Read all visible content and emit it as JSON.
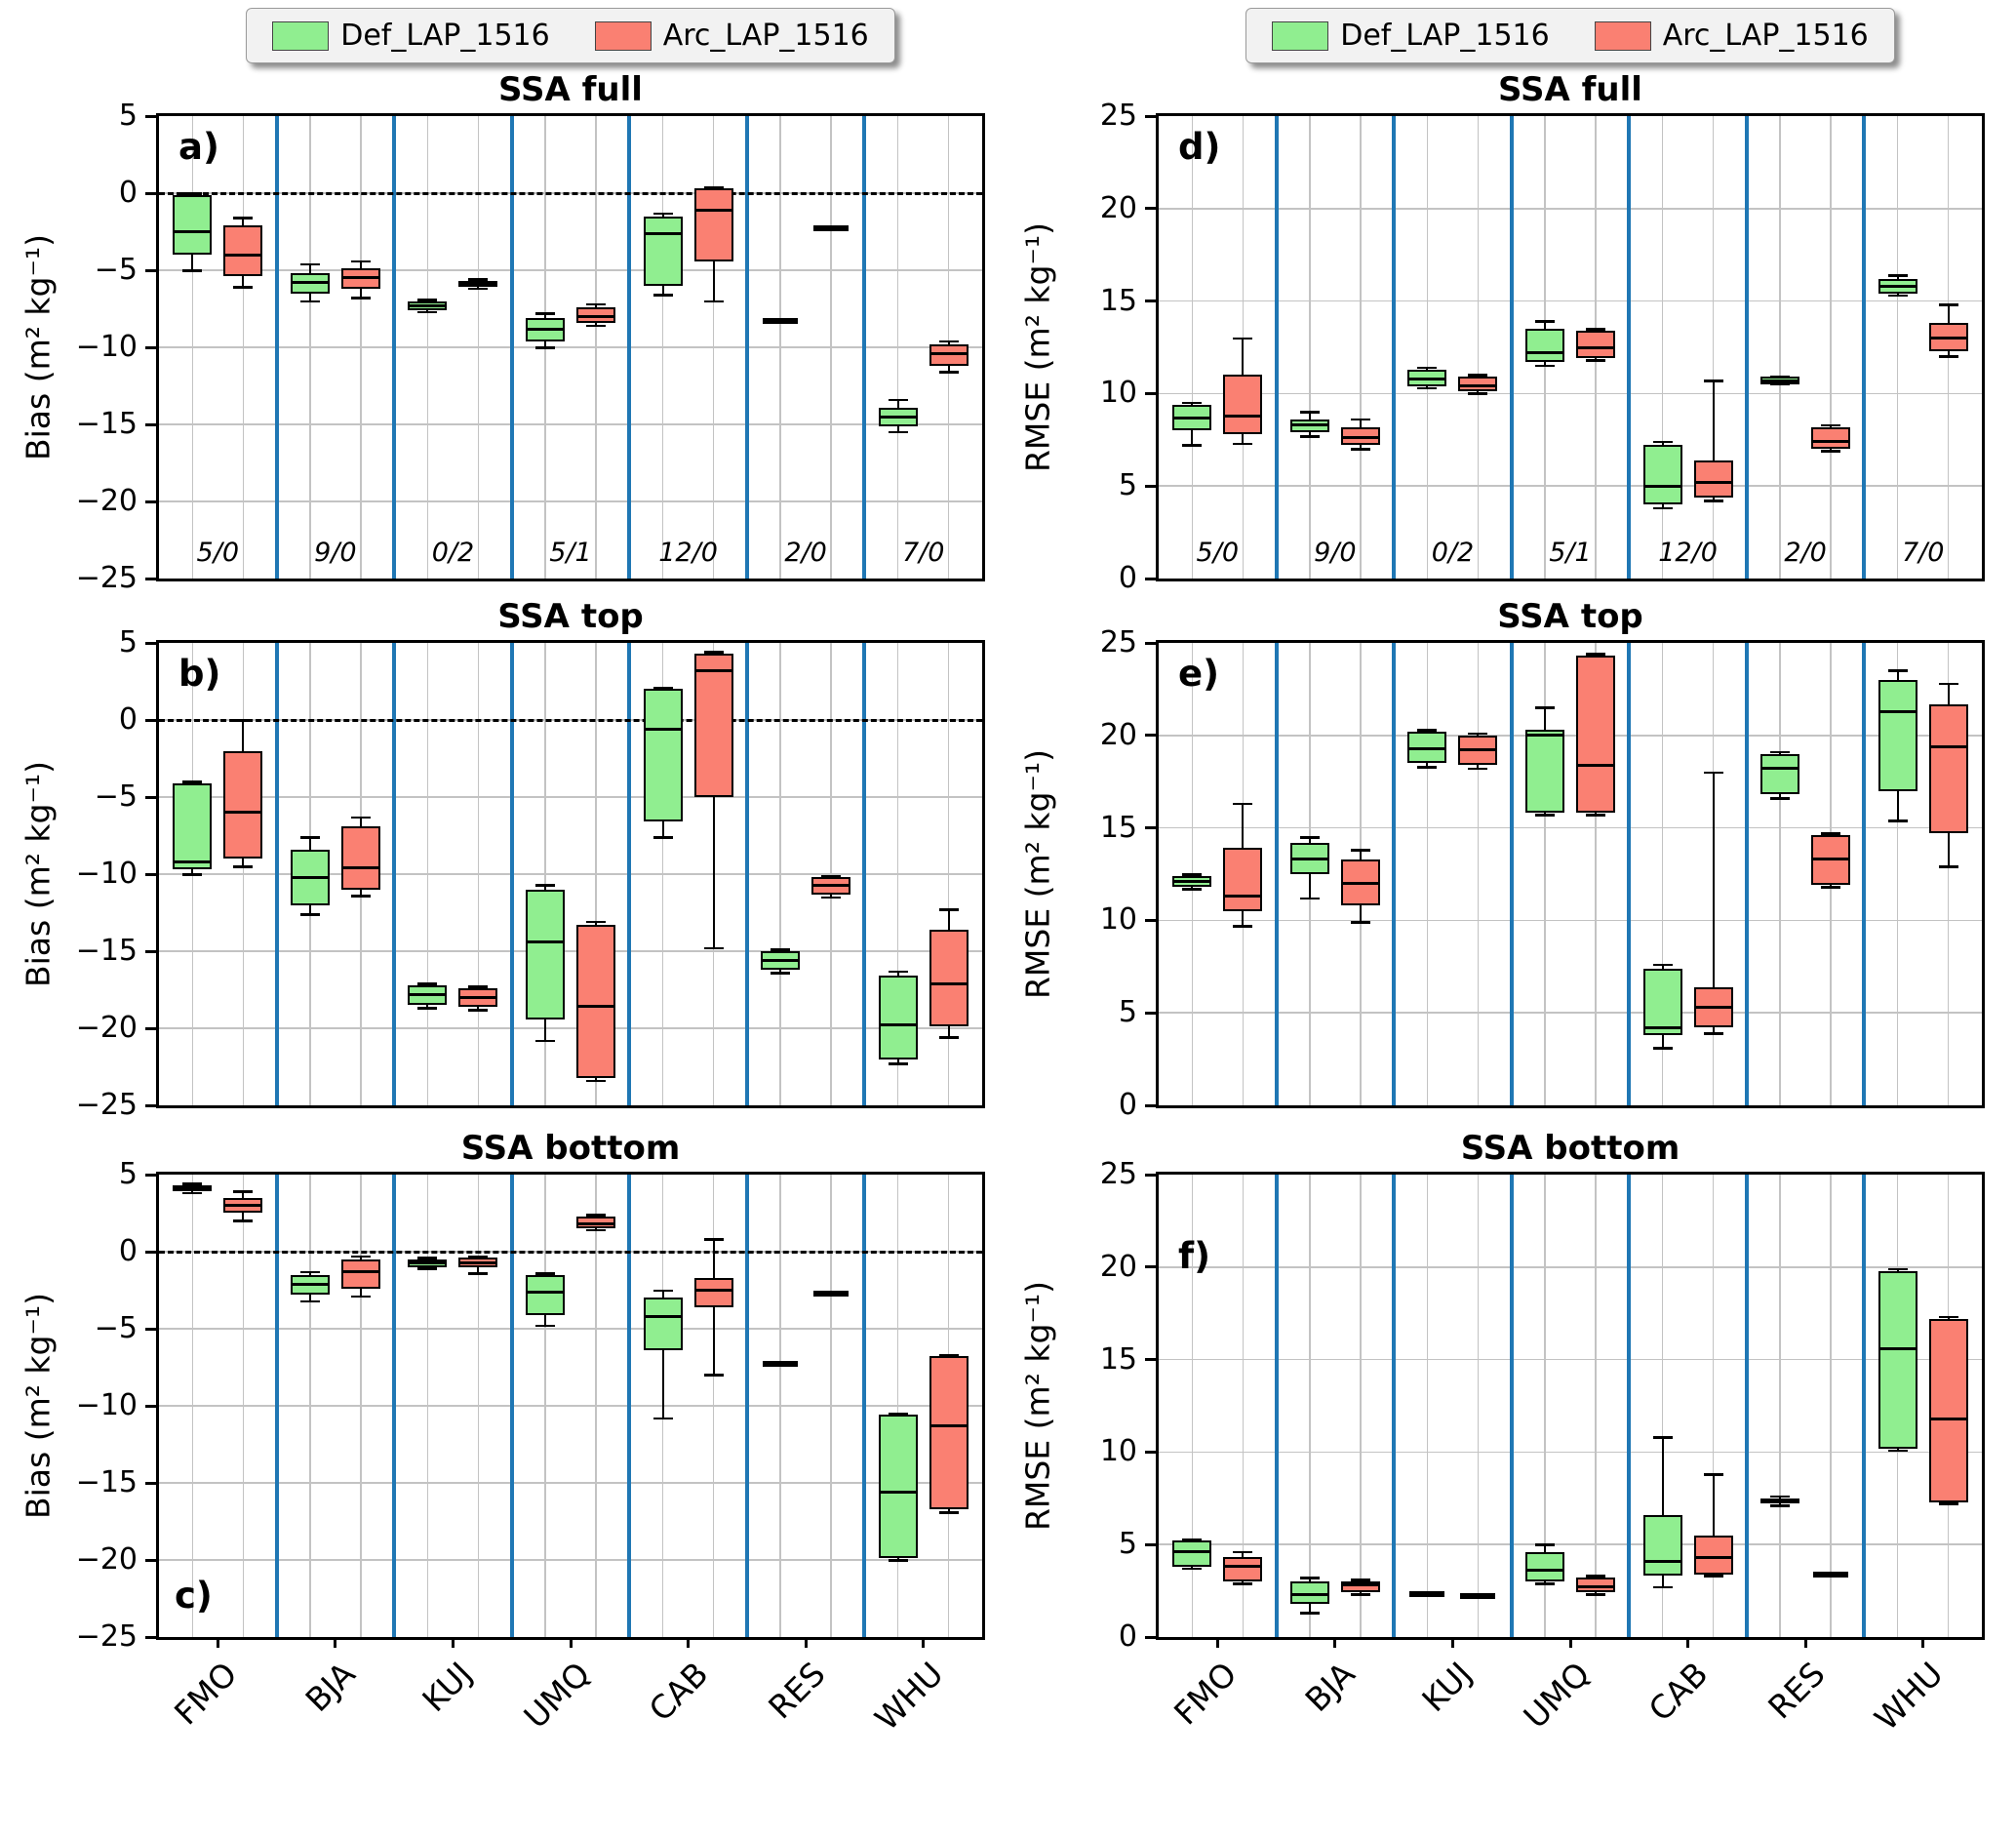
{
  "chart_data": {
    "type": "boxplot",
    "description": "Grouped box plots of Bias and RMSE per station for two retrieval configurations",
    "series_names": [
      "Def_LAP_1516",
      "Arc_LAP_1516"
    ],
    "series_colors": [
      "#90ee90",
      "#fa8072"
    ],
    "categories": [
      "FMO",
      "BJA",
      "KUJ",
      "UMQ",
      "CAB",
      "RES",
      "WHU"
    ],
    "counts": [
      "5/0",
      "9/0",
      "0/2",
      "5/1",
      "12/0",
      "2/0",
      "7/0"
    ],
    "box_format": [
      "whisker_low",
      "q1",
      "median",
      "q3",
      "whisker_high"
    ],
    "separator_color": "#1f77b4",
    "grid_color": "#c3c3c3",
    "panels": [
      {
        "id": "a",
        "letter": "a)",
        "letter_pos": "top-left",
        "title": "SSA full",
        "ylabel": "Bias (m² kg⁻¹)",
        "ylim": [
          -25,
          5
        ],
        "yticks": [
          5,
          0,
          -5,
          -10,
          -15,
          -20,
          -25
        ],
        "zero_line": true,
        "show_counts": true,
        "show_xlabels": false,
        "series": [
          {
            "name": "Def_LAP_1516",
            "boxes": [
              [
                -5.0,
                -4.0,
                -2.5,
                -0.1,
                0.0
              ],
              [
                -7.0,
                -6.5,
                -5.8,
                -5.2,
                -4.6
              ],
              [
                -7.7,
                -7.6,
                -7.3,
                -7.0,
                -6.9
              ],
              [
                -10.0,
                -9.6,
                -8.8,
                -8.1,
                -7.8
              ],
              [
                -6.6,
                -6.0,
                -2.6,
                -1.5,
                -1.3
              ],
              [
                -8.3,
                -8.3,
                -8.3,
                -8.3,
                -8.3
              ],
              [
                -15.5,
                -15.1,
                -14.5,
                -13.9,
                -13.4
              ]
            ]
          },
          {
            "name": "Arc_LAP_1516",
            "boxes": [
              [
                -6.1,
                -5.4,
                -4.0,
                -2.1,
                -1.6
              ],
              [
                -6.8,
                -6.2,
                -5.5,
                -4.9,
                -4.4
              ],
              [
                -6.2,
                -6.1,
                -5.9,
                -5.7,
                -5.6
              ],
              [
                -8.6,
                -8.4,
                -8.0,
                -7.4,
                -7.2
              ],
              [
                -7.0,
                -4.4,
                -1.1,
                0.3,
                0.4
              ],
              [
                -2.3,
                -2.3,
                -2.3,
                -2.3,
                -2.3
              ],
              [
                -11.6,
                -11.2,
                -10.4,
                -9.8,
                -9.6
              ]
            ]
          }
        ]
      },
      {
        "id": "b",
        "letter": "b)",
        "letter_pos": "top-left",
        "title": "SSA top",
        "ylabel": "Bias (m² kg⁻¹)",
        "ylim": [
          -25,
          5
        ],
        "yticks": [
          5,
          0,
          -5,
          -10,
          -15,
          -20,
          -25
        ],
        "zero_line": true,
        "show_counts": false,
        "show_xlabels": false,
        "series": [
          {
            "name": "Def_LAP_1516",
            "boxes": [
              [
                -10.0,
                -9.7,
                -9.2,
                -4.1,
                -4.0
              ],
              [
                -12.6,
                -12.0,
                -10.2,
                -8.4,
                -7.6
              ],
              [
                -18.7,
                -18.5,
                -17.8,
                -17.2,
                -17.1
              ],
              [
                -20.8,
                -19.4,
                -14.4,
                -11.0,
                -10.7
              ],
              [
                -7.6,
                -6.6,
                -0.6,
                2.0,
                2.1
              ],
              [
                -16.4,
                -16.2,
                -15.6,
                -15.0,
                -14.9
              ],
              [
                -22.3,
                -22.0,
                -19.8,
                -16.6,
                -16.3
              ]
            ]
          },
          {
            "name": "Arc_LAP_1516",
            "boxes": [
              [
                -9.5,
                -9.0,
                -6.0,
                -2.0,
                0.0
              ],
              [
                -11.4,
                -11.0,
                -9.6,
                -6.9,
                -6.3
              ],
              [
                -18.8,
                -18.6,
                -18.0,
                -17.4,
                -17.3
              ],
              [
                -23.4,
                -23.2,
                -18.6,
                -13.3,
                -13.1
              ],
              [
                -14.8,
                -5.0,
                3.2,
                4.3,
                4.4
              ],
              [
                -11.5,
                -11.3,
                -10.7,
                -10.2,
                -10.1
              ],
              [
                -20.6,
                -19.9,
                -17.1,
                -13.6,
                -12.3
              ]
            ]
          }
        ]
      },
      {
        "id": "c",
        "letter": "c)",
        "letter_pos": "bottom-left",
        "title": "SSA bottom",
        "ylabel": "Bias (m² kg⁻¹)",
        "ylim": [
          -25,
          5
        ],
        "yticks": [
          5,
          0,
          -5,
          -10,
          -15,
          -20,
          -25
        ],
        "zero_line": true,
        "show_counts": false,
        "show_xlabels": true,
        "series": [
          {
            "name": "Def_LAP_1516",
            "boxes": [
              [
                3.8,
                3.9,
                4.1,
                4.3,
                4.4
              ],
              [
                -3.2,
                -2.8,
                -2.1,
                -1.5,
                -1.3
              ],
              [
                -1.1,
                -1.0,
                -0.7,
                -0.5,
                -0.4
              ],
              [
                -4.8,
                -4.1,
                -2.6,
                -1.5,
                -1.4
              ],
              [
                -10.8,
                -6.4,
                -4.2,
                -3.0,
                -2.5
              ],
              [
                -7.3,
                -7.3,
                -7.3,
                -7.3,
                -7.3
              ],
              [
                -20.0,
                -19.9,
                -15.6,
                -10.6,
                -10.5
              ]
            ]
          },
          {
            "name": "Arc_LAP_1516",
            "boxes": [
              [
                2.0,
                2.5,
                3.0,
                3.5,
                3.9
              ],
              [
                -2.9,
                -2.4,
                -1.3,
                -0.5,
                -0.3
              ],
              [
                -1.4,
                -1.0,
                -0.7,
                -0.4,
                -0.3
              ],
              [
                1.4,
                1.5,
                1.8,
                2.3,
                2.4
              ],
              [
                -8.0,
                -3.6,
                -2.5,
                -1.7,
                0.8
              ],
              [
                -2.7,
                -2.7,
                -2.7,
                -2.7,
                -2.7
              ],
              [
                -16.9,
                -16.7,
                -11.3,
                -6.8,
                -6.7
              ]
            ]
          }
        ]
      },
      {
        "id": "d",
        "letter": "d)",
        "letter_pos": "top-left",
        "title": "SSA full",
        "ylabel": "RMSE (m² kg⁻¹)",
        "ylim": [
          0,
          25
        ],
        "yticks": [
          25,
          20,
          15,
          10,
          5,
          0
        ],
        "zero_line": false,
        "show_counts": true,
        "show_xlabels": false,
        "series": [
          {
            "name": "Def_LAP_1516",
            "boxes": [
              [
                7.2,
                8.0,
                8.7,
                9.4,
                9.5
              ],
              [
                7.7,
                7.9,
                8.3,
                8.6,
                9.0
              ],
              [
                10.3,
                10.4,
                10.8,
                11.3,
                11.4
              ],
              [
                11.5,
                11.7,
                12.2,
                13.5,
                13.9
              ],
              [
                3.8,
                4.0,
                5.0,
                7.2,
                7.4
              ],
              [
                10.5,
                10.5,
                10.7,
                10.9,
                10.9
              ],
              [
                15.3,
                15.4,
                15.8,
                16.2,
                16.4
              ]
            ]
          },
          {
            "name": "Arc_LAP_1516",
            "boxes": [
              [
                7.3,
                7.8,
                8.8,
                11.0,
                13.0
              ],
              [
                7.0,
                7.2,
                7.6,
                8.2,
                8.6
              ],
              [
                10.0,
                10.1,
                10.4,
                10.9,
                11.0
              ],
              [
                11.8,
                11.9,
                12.5,
                13.4,
                13.5
              ],
              [
                4.2,
                4.4,
                5.2,
                6.4,
                10.7
              ],
              [
                6.9,
                7.0,
                7.4,
                8.2,
                8.3
              ],
              [
                12.0,
                12.3,
                13.0,
                13.8,
                14.8
              ]
            ]
          }
        ]
      },
      {
        "id": "e",
        "letter": "e)",
        "letter_pos": "top-left",
        "title": "SSA top",
        "ylabel": "RMSE (m² kg⁻¹)",
        "ylim": [
          0,
          25
        ],
        "yticks": [
          25,
          20,
          15,
          10,
          5,
          0
        ],
        "zero_line": false,
        "show_counts": false,
        "show_xlabels": false,
        "series": [
          {
            "name": "Def_LAP_1516",
            "boxes": [
              [
                11.7,
                11.8,
                12.1,
                12.4,
                12.5
              ],
              [
                11.2,
                12.5,
                13.3,
                14.2,
                14.5
              ],
              [
                18.3,
                18.5,
                19.3,
                20.2,
                20.3
              ],
              [
                15.7,
                15.8,
                20.0,
                20.3,
                21.5
              ],
              [
                3.1,
                3.8,
                4.2,
                7.4,
                7.6
              ],
              [
                16.6,
                16.8,
                18.2,
                19.0,
                19.1
              ],
              [
                15.4,
                17.0,
                21.3,
                23.0,
                23.5
              ]
            ]
          },
          {
            "name": "Arc_LAP_1516",
            "boxes": [
              [
                9.7,
                10.5,
                11.3,
                13.9,
                16.3
              ],
              [
                9.9,
                10.8,
                12.0,
                13.3,
                13.8
              ],
              [
                18.2,
                18.4,
                19.2,
                20.0,
                20.1
              ],
              [
                15.7,
                15.8,
                18.4,
                24.3,
                24.4
              ],
              [
                3.9,
                4.2,
                5.3,
                6.4,
                18.0
              ],
              [
                11.8,
                11.9,
                13.3,
                14.6,
                14.7
              ],
              [
                12.9,
                14.7,
                19.4,
                21.7,
                22.8
              ]
            ]
          }
        ]
      },
      {
        "id": "f",
        "letter": "f)",
        "letter_pos": "top-left-2",
        "title": "SSA bottom",
        "ylabel": "RMSE (m² kg⁻¹)",
        "ylim": [
          0,
          25
        ],
        "yticks": [
          25,
          20,
          15,
          10,
          5,
          0
        ],
        "zero_line": false,
        "show_counts": false,
        "show_xlabels": true,
        "series": [
          {
            "name": "Def_LAP_1516",
            "boxes": [
              [
                3.7,
                3.8,
                4.6,
                5.2,
                5.3
              ],
              [
                1.3,
                1.8,
                2.3,
                3.0,
                3.2
              ],
              [
                2.3,
                2.3,
                2.3,
                2.3,
                2.3
              ],
              [
                2.9,
                3.0,
                3.6,
                4.6,
                5.0
              ],
              [
                2.7,
                3.3,
                4.1,
                6.6,
                10.8
              ],
              [
                7.1,
                7.2,
                7.4,
                7.5,
                7.6
              ],
              [
                10.1,
                10.2,
                15.6,
                19.8,
                19.9
              ]
            ]
          },
          {
            "name": "Arc_LAP_1516",
            "boxes": [
              [
                2.9,
                3.0,
                3.8,
                4.3,
                4.6
              ],
              [
                2.3,
                2.4,
                2.8,
                3.0,
                3.1
              ],
              [
                2.2,
                2.2,
                2.2,
                2.2,
                2.2
              ],
              [
                2.3,
                2.4,
                2.7,
                3.2,
                3.3
              ],
              [
                3.3,
                3.4,
                4.3,
                5.5,
                8.8
              ],
              [
                3.4,
                3.4,
                3.4,
                3.4,
                3.4
              ],
              [
                7.2,
                7.3,
                11.8,
                17.2,
                17.3
              ]
            ]
          }
        ]
      }
    ]
  }
}
